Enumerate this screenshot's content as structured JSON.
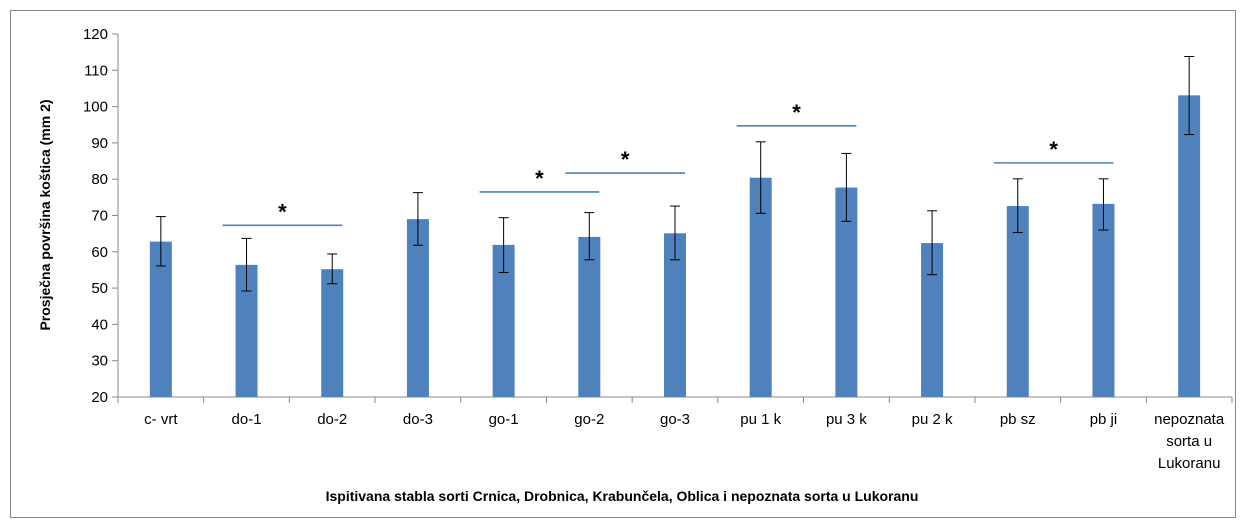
{
  "chart_data": {
    "type": "bar",
    "title": "",
    "ylabel": "Prosječna površina koštica (mm 2)",
    "xlabel": "Ispitivana stabla sorti Crnica, Drobnica, Krabunčela, Oblica i nepoznata sorta u Lukoranu",
    "ylim": [
      20,
      120
    ],
    "yticks": [
      20,
      30,
      40,
      50,
      60,
      70,
      80,
      90,
      100,
      110,
      120
    ],
    "categories": [
      [
        "c- vrt"
      ],
      [
        "do-1"
      ],
      [
        "do-2"
      ],
      [
        "do-3"
      ],
      [
        "go-1"
      ],
      [
        "go-2"
      ],
      [
        "go-3"
      ],
      [
        "pu 1 k"
      ],
      [
        "pu 3 k"
      ],
      [
        "pu 2 k"
      ],
      [
        "pb sz"
      ],
      [
        "pb ji"
      ],
      [
        "nepoznata",
        "sorta u",
        "Lukoranu"
      ]
    ],
    "values": [
      62.8,
      56.4,
      55.2,
      69.0,
      61.9,
      64.1,
      65.1,
      80.4,
      77.7,
      62.4,
      72.6,
      73.2,
      103.1
    ],
    "error_high": [
      69.7,
      63.7,
      59.4,
      76.3,
      69.4,
      70.8,
      72.6,
      90.3,
      87.1,
      71.3,
      80.1,
      80.1,
      113.8
    ],
    "error_low": [
      56.1,
      49.2,
      51.2,
      61.8,
      54.3,
      57.8,
      57.8,
      70.6,
      68.4,
      53.7,
      65.3,
      66.0,
      92.3
    ],
    "significance": [
      {
        "from": 1,
        "to": 2,
        "y": 67.3,
        "label": "*"
      },
      {
        "from": 4,
        "to": 5,
        "y": 76.5,
        "label": "*"
      },
      {
        "from": 5,
        "to": 6,
        "y": 81.7,
        "label": "*"
      },
      {
        "from": 7,
        "to": 8,
        "y": 94.7,
        "label": "*"
      },
      {
        "from": 10,
        "to": 11,
        "y": 84.5,
        "label": "*"
      }
    ],
    "colors": {
      "bar": "#4F81BD",
      "sig_line": "#4F81BD",
      "axis": "#888888"
    },
    "grid": false,
    "legend": "none"
  }
}
